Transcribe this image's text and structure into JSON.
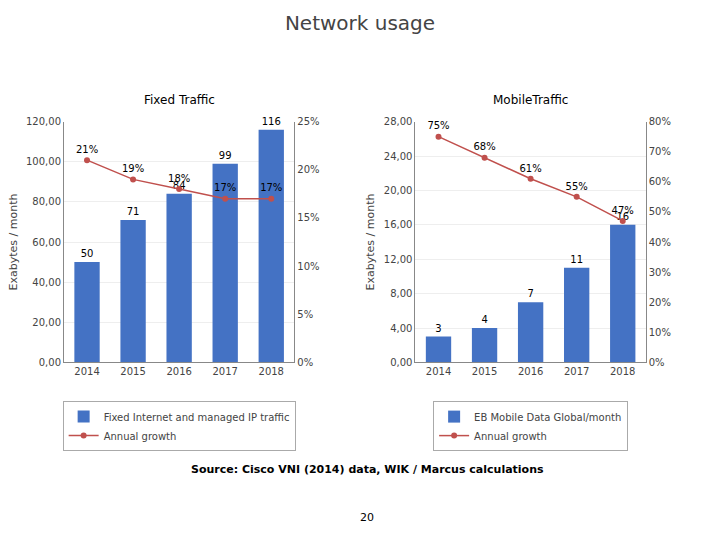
{
  "title": "Network usage",
  "annotations": [
    "Source: Cisco VNI (2014) data, WIK / Marcus calculations",
    "20"
  ],
  "chart_data": [
    {
      "type": "bar",
      "title": "Fixed Traffic",
      "categories": [
        "2014",
        "2015",
        "2016",
        "2017",
        "2018"
      ],
      "ylabel": "Exabytes / month",
      "series": [
        {
          "name": "Fixed Internet and managed IP traffic",
          "type": "bar",
          "color": "#4472C4",
          "values": [
            50,
            71,
            84,
            99,
            116
          ],
          "data_labels": true
        },
        {
          "name": "Annual growth",
          "type": "line",
          "axis": "y2",
          "color": "#C0504D",
          "marker": "circle",
          "line_style": "solid",
          "values": [
            21,
            19,
            18,
            17,
            17
          ],
          "value_labels": [
            "21%",
            "19%",
            "18%",
            "17%",
            "17%"
          ],
          "data_labels": true
        }
      ],
      "ylim": [
        0,
        120
      ],
      "yticks": [
        {
          "value": 0,
          "label": "0,00"
        },
        {
          "value": 20,
          "label": "20,00"
        },
        {
          "value": 40,
          "label": "40,00"
        },
        {
          "value": 60,
          "label": "60,00"
        },
        {
          "value": 80,
          "label": "80,00"
        },
        {
          "value": 100,
          "label": "100,00"
        },
        {
          "value": 120,
          "label": "120,00"
        }
      ],
      "y2lim": [
        0,
        25
      ],
      "y2ticks": [
        {
          "value": 0,
          "label": "0%"
        },
        {
          "value": 5,
          "label": "5%"
        },
        {
          "value": 10,
          "label": "10%"
        },
        {
          "value": 15,
          "label": "15%"
        },
        {
          "value": 20,
          "label": "20%"
        },
        {
          "value": 25,
          "label": "25%"
        }
      ],
      "grid": true,
      "legend": "bottom"
    },
    {
      "type": "bar",
      "title": "MobileTraffic",
      "categories": [
        "2014",
        "2015",
        "2016",
        "2017",
        "2018"
      ],
      "ylabel": "Exabytes / month",
      "series": [
        {
          "name": "EB Mobile Data Global/month",
          "type": "bar",
          "color": "#4472C4",
          "values": [
            3,
            4,
            7,
            11,
            16
          ],
          "data_labels": true
        },
        {
          "name": "Annual growth",
          "type": "line",
          "axis": "y2",
          "color": "#C0504D",
          "marker": "circle",
          "line_style": "solid",
          "values": [
            75,
            68,
            61,
            55,
            47
          ],
          "value_labels": [
            "75%",
            "68%",
            "61%",
            "55%",
            "47%"
          ],
          "data_labels": true
        }
      ],
      "ylim": [
        0,
        28
      ],
      "yticks": [
        {
          "value": 0,
          "label": "0,00"
        },
        {
          "value": 4,
          "label": "4,00"
        },
        {
          "value": 8,
          "label": "8,00"
        },
        {
          "value": 12,
          "label": "12,00"
        },
        {
          "value": 16,
          "label": "16,00"
        },
        {
          "value": 20,
          "label": "20,00"
        },
        {
          "value": 24,
          "label": "24,00"
        },
        {
          "value": 28,
          "label": "28,00"
        }
      ],
      "y2lim": [
        0,
        80
      ],
      "y2ticks": [
        {
          "value": 0,
          "label": "0%"
        },
        {
          "value": 10,
          "label": "10%"
        },
        {
          "value": 20,
          "label": "20%"
        },
        {
          "value": 30,
          "label": "30%"
        },
        {
          "value": 40,
          "label": "40%"
        },
        {
          "value": 50,
          "label": "50%"
        },
        {
          "value": 60,
          "label": "60%"
        },
        {
          "value": 70,
          "label": "70%"
        },
        {
          "value": 80,
          "label": "80%"
        }
      ],
      "grid": true,
      "legend": "bottom"
    }
  ]
}
